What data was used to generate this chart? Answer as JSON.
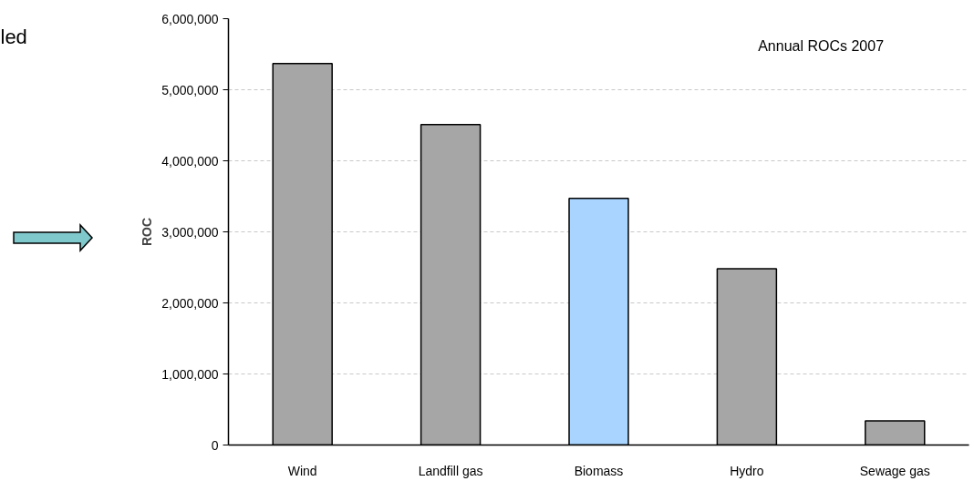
{
  "chart_data": {
    "type": "bar",
    "title": "Annual ROCs 2007",
    "ylabel": "ROC",
    "categories": [
      "Wind",
      "Landfill gas",
      "Biomass",
      "Hydro",
      "Sewage gas"
    ],
    "values": [
      5370000,
      4510000,
      3470000,
      2480000,
      340000
    ],
    "colors": [
      "#a6a6a6",
      "#a6a6a6",
      "#a8d4ff",
      "#a6a6a6",
      "#a6a6a6"
    ],
    "ylim": [
      0,
      6000000
    ],
    "yticks": [
      {
        "value": 0,
        "label": "0"
      },
      {
        "value": 1000000,
        "label": "1,000,000"
      },
      {
        "value": 2000000,
        "label": "2,000,000"
      },
      {
        "value": 3000000,
        "label": "3,000,000"
      },
      {
        "value": 4000000,
        "label": "4,000,000"
      },
      {
        "value": 5000000,
        "label": "5,000,000"
      },
      {
        "value": 6000000,
        "label": "6,000,000"
      }
    ],
    "grid": "y",
    "annotations": [
      "led"
    ]
  }
}
